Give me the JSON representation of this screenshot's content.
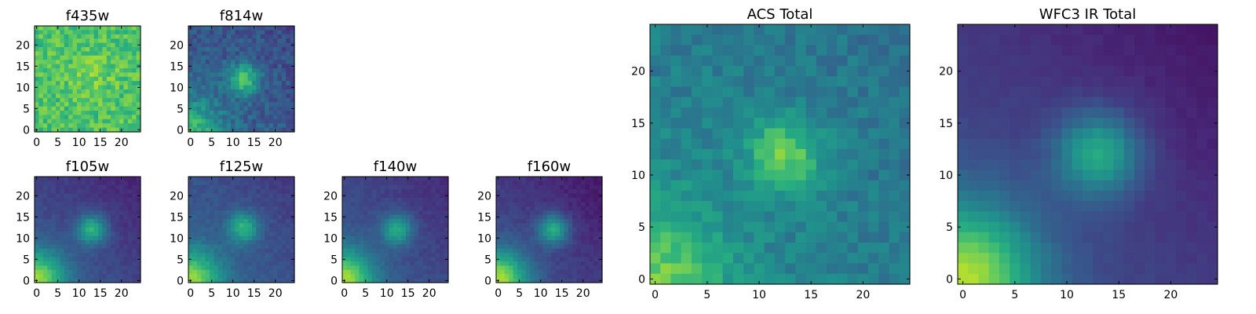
{
  "figure": {
    "colormap": "viridis",
    "background": "#ffffff"
  },
  "chart_data": [
    {
      "type": "heatmap",
      "title": "f435w",
      "size": 25,
      "xlim": [
        0,
        24
      ],
      "ylim": [
        0,
        24
      ],
      "xticks": [
        0,
        5,
        10,
        15,
        20
      ],
      "yticks": [
        0,
        5,
        10,
        15,
        20
      ],
      "source": {
        "x": 13,
        "y": 13,
        "amp": 0.08,
        "sigma": 4
      },
      "floor": 0.72,
      "noise": 0.22,
      "gradient": 0.0
    },
    {
      "type": "heatmap",
      "title": "f814w",
      "size": 25,
      "xlim": [
        0,
        24
      ],
      "ylim": [
        0,
        24
      ],
      "xticks": [
        0,
        5,
        10,
        15,
        20
      ],
      "yticks": [
        0,
        5,
        10,
        15,
        20
      ],
      "source": {
        "x": 12.5,
        "y": 12,
        "amp": 0.45,
        "sigma": 2.5
      },
      "floor": 0.35,
      "noise": 0.18,
      "gradient": 0.35
    },
    {
      "type": "heatmap",
      "title": "f105w",
      "size": 25,
      "xlim": [
        0,
        24
      ],
      "ylim": [
        0,
        24
      ],
      "xticks": [
        0,
        5,
        10,
        15,
        20
      ],
      "yticks": [
        0,
        5,
        10,
        15,
        20
      ],
      "source": {
        "x": 13,
        "y": 12,
        "amp": 0.45,
        "sigma": 2.5
      },
      "floor": 0.3,
      "noise": 0.06,
      "gradient": 0.55
    },
    {
      "type": "heatmap",
      "title": "f125w",
      "size": 25,
      "xlim": [
        0,
        24
      ],
      "ylim": [
        0,
        24
      ],
      "xticks": [
        0,
        5,
        10,
        15,
        20
      ],
      "yticks": [
        0,
        5,
        10,
        15,
        20
      ],
      "source": {
        "x": 12.5,
        "y": 12.5,
        "amp": 0.4,
        "sigma": 2.5
      },
      "floor": 0.35,
      "noise": 0.07,
      "gradient": 0.5
    },
    {
      "type": "heatmap",
      "title": "f140w",
      "size": 25,
      "xlim": [
        0,
        24
      ],
      "ylim": [
        0,
        24
      ],
      "xticks": [
        0,
        5,
        10,
        15,
        20
      ],
      "yticks": [
        0,
        5,
        10,
        15,
        20
      ],
      "source": {
        "x": 12.5,
        "y": 12,
        "amp": 0.4,
        "sigma": 2.5
      },
      "floor": 0.32,
      "noise": 0.06,
      "gradient": 0.55
    },
    {
      "type": "heatmap",
      "title": "f160w",
      "size": 25,
      "xlim": [
        0,
        24
      ],
      "ylim": [
        0,
        24
      ],
      "xticks": [
        0,
        5,
        10,
        15,
        20
      ],
      "yticks": [
        0,
        5,
        10,
        15,
        20
      ],
      "source": {
        "x": 13,
        "y": 12,
        "amp": 0.45,
        "sigma": 2.5
      },
      "floor": 0.28,
      "noise": 0.06,
      "gradient": 0.6
    },
    {
      "type": "heatmap",
      "title": "ACS Total",
      "size": 25,
      "xlim": [
        0,
        24
      ],
      "ylim": [
        0,
        24
      ],
      "xticks": [
        0,
        5,
        10,
        15,
        20
      ],
      "yticks": [
        0,
        5,
        10,
        15,
        20
      ],
      "source": {
        "x": 12.5,
        "y": 12,
        "amp": 0.35,
        "sigma": 2.5
      },
      "floor": 0.48,
      "noise": 0.14,
      "gradient": 0.3
    },
    {
      "type": "heatmap",
      "title": "WFC3 IR Total",
      "size": 25,
      "xlim": [
        0,
        24
      ],
      "ylim": [
        0,
        24
      ],
      "xticks": [
        0,
        5,
        10,
        15,
        20
      ],
      "yticks": [
        0,
        5,
        10,
        15,
        20
      ],
      "source": {
        "x": 13,
        "y": 12,
        "amp": 0.45,
        "sigma": 2.8
      },
      "floor": 0.28,
      "noise": 0.03,
      "gradient": 0.62
    }
  ]
}
